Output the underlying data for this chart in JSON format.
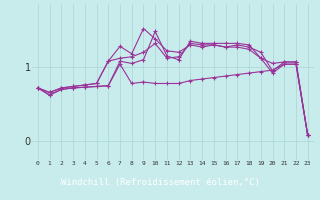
{
  "background_color": "#c8ecec",
  "grid_color": "#aad4d4",
  "line_color": "#993399",
  "x": [
    0,
    1,
    2,
    3,
    4,
    5,
    6,
    7,
    8,
    9,
    10,
    11,
    12,
    13,
    14,
    15,
    16,
    17,
    18,
    19,
    20,
    21,
    22,
    23
  ],
  "series1": [
    0.72,
    0.62,
    0.7,
    0.72,
    0.73,
    0.74,
    0.75,
    1.08,
    1.05,
    1.1,
    1.48,
    1.15,
    1.1,
    1.35,
    1.32,
    1.32,
    1.32,
    1.32,
    1.3,
    1.12,
    1.05,
    1.07,
    1.07,
    0.08
  ],
  "series2": [
    0.72,
    0.66,
    0.72,
    0.74,
    0.76,
    0.78,
    1.08,
    1.28,
    1.18,
    1.52,
    1.38,
    1.22,
    1.2,
    1.3,
    1.27,
    1.3,
    1.27,
    1.3,
    1.27,
    1.2,
    0.95,
    1.07,
    1.07,
    0.08
  ],
  "series3": [
    0.72,
    0.66,
    0.72,
    0.74,
    0.76,
    0.78,
    1.08,
    1.12,
    1.14,
    1.2,
    1.32,
    1.12,
    1.14,
    1.32,
    1.3,
    1.3,
    1.27,
    1.27,
    1.24,
    1.12,
    0.92,
    1.04,
    1.04,
    0.08
  ],
  "series4": [
    0.72,
    0.63,
    0.7,
    0.72,
    0.73,
    0.74,
    0.75,
    1.04,
    0.78,
    0.8,
    0.78,
    0.78,
    0.78,
    0.82,
    0.84,
    0.86,
    0.88,
    0.9,
    0.92,
    0.94,
    0.96,
    1.04,
    1.04,
    0.08
  ],
  "yticks": [
    0,
    1
  ],
  "xticks": [
    0,
    1,
    2,
    3,
    4,
    5,
    6,
    7,
    8,
    9,
    10,
    11,
    12,
    13,
    14,
    15,
    16,
    17,
    18,
    19,
    20,
    21,
    22,
    23
  ],
  "xlabel": "Windchill (Refroidissement éolien,°C)",
  "ylim": [
    -0.25,
    1.85
  ],
  "xlim": [
    -0.5,
    23.5
  ]
}
